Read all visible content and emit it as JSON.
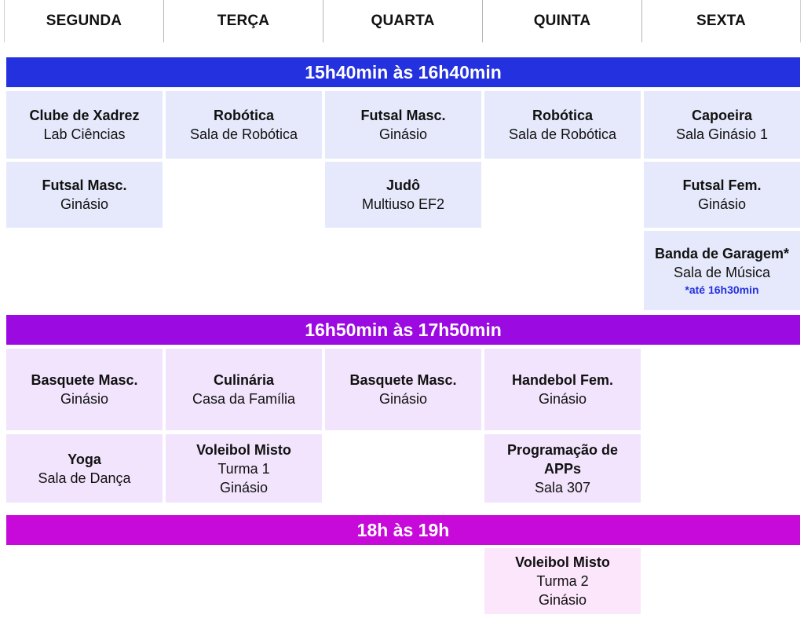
{
  "days": [
    "SEGUNDA",
    "TERÇA",
    "QUARTA",
    "QUINTA",
    "SEXTA"
  ],
  "colors": {
    "band1": "#2431de",
    "band2": "#9b0ae0",
    "band3": "#c70ad9",
    "note": "#2431de"
  },
  "slots": [
    {
      "label": "15h40min às 16h40min",
      "cells": [
        {
          "name": "Clube de Xadrez",
          "lines": [
            "Lab Ciências"
          ]
        },
        {
          "name": "Robótica",
          "lines": [
            "Sala de Robótica"
          ]
        },
        {
          "name": "Futsal Masc.",
          "lines": [
            "Ginásio"
          ]
        },
        {
          "name": "Robótica",
          "lines": [
            "Sala de Robótica"
          ]
        },
        {
          "name": "Capoeira",
          "lines": [
            "Sala Ginásio 1"
          ]
        },
        {
          "name": "Futsal Masc.",
          "lines": [
            "Ginásio"
          ]
        },
        {
          "name": "Judô",
          "lines": [
            "Multiuso EF2"
          ]
        },
        {
          "name": "Futsal Fem.",
          "lines": [
            "Ginásio"
          ]
        },
        {
          "name": "Banda de Garagem*",
          "lines": [
            "Sala de Música"
          ],
          "note": "*até 16h30min"
        }
      ]
    },
    {
      "label": "16h50min às 17h50min",
      "cells": [
        {
          "name": "Basquete Masc.",
          "lines": [
            "Ginásio"
          ]
        },
        {
          "name": "Culinária",
          "lines": [
            "Casa da Família"
          ]
        },
        {
          "name": "Basquete Masc.",
          "lines": [
            "Ginásio"
          ]
        },
        {
          "name": "Handebol Fem.",
          "lines": [
            "Ginásio"
          ]
        },
        {
          "name": "Yoga",
          "lines": [
            "Sala de Dança"
          ]
        },
        {
          "name": "Voleibol Misto",
          "lines": [
            "Turma 1",
            "Ginásio"
          ]
        },
        {
          "name": "Programação de APPs",
          "lines": [
            "Sala 307"
          ]
        }
      ]
    },
    {
      "label": "18h às 19h",
      "cells": [
        {
          "name": "Voleibol Misto",
          "lines": [
            "Turma 2",
            "Ginásio"
          ]
        }
      ]
    }
  ]
}
